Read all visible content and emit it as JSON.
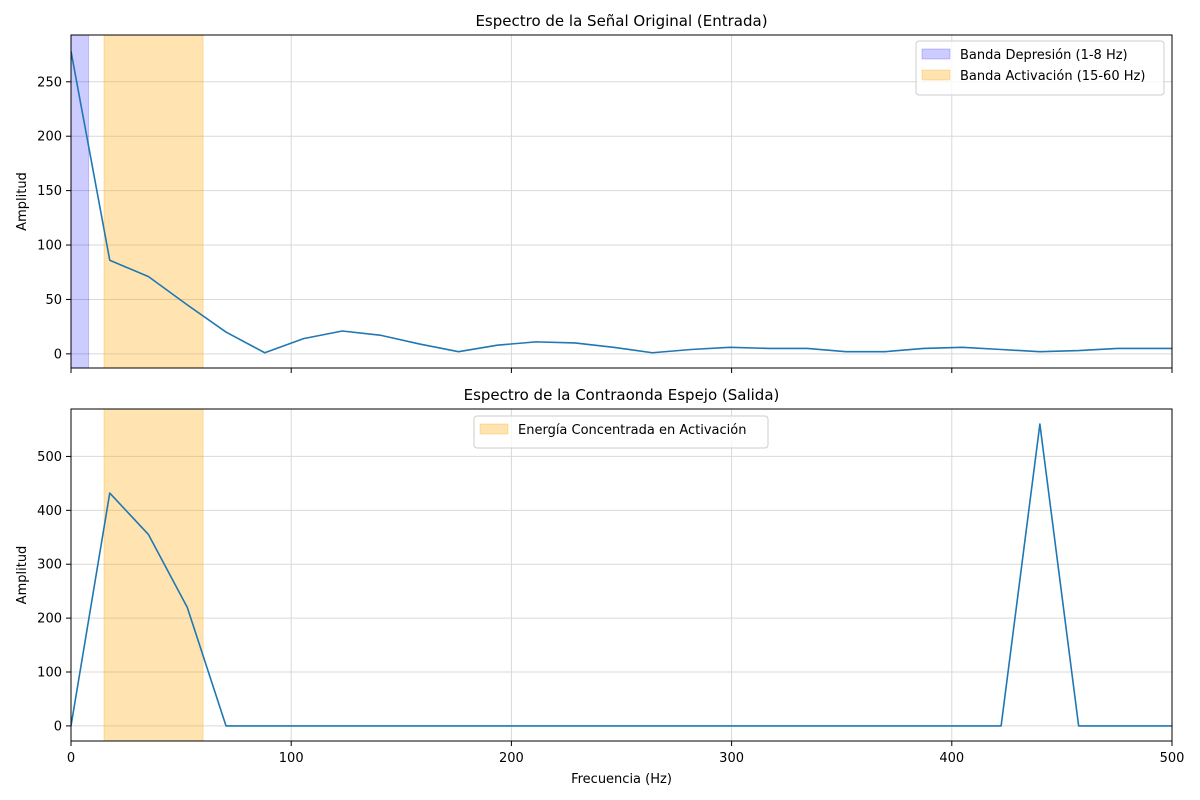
{
  "chart_data": [
    {
      "type": "line",
      "title": "Espectro de la Señal Original (Entrada)",
      "xlabel": "",
      "ylabel": "Amplitud",
      "xlim": [
        0,
        500
      ],
      "ylim": [
        -13,
        293
      ],
      "xticks": [
        0,
        100,
        200,
        300,
        400,
        500
      ],
      "yticks": [
        0,
        50,
        100,
        150,
        200,
        250
      ],
      "show_xtick_labels": false,
      "grid": true,
      "legend_position": "top-right",
      "bands": [
        {
          "label": "Banda Depresión (1-8 Hz)",
          "x0": 0,
          "x1": 8,
          "color": "#0000ff",
          "opacity": 0.2
        },
        {
          "label": "Banda Activación (15-60 Hz)",
          "x0": 15,
          "x1": 60,
          "color": "#ffa500",
          "opacity": 0.3
        }
      ],
      "series": [
        {
          "color": "#1f77b4",
          "x": [
            0,
            17.6,
            35.2,
            52.8,
            70.4,
            88.0,
            105.6,
            123.2,
            140.8,
            158.4,
            176.0,
            193.6,
            211.2,
            228.8,
            246.4,
            264.0,
            281.6,
            299.2,
            316.8,
            334.4,
            352.0,
            369.6,
            387.2,
            404.8,
            422.4,
            440.0,
            457.6,
            475.2,
            492.8,
            510.4
          ],
          "y": [
            278,
            86,
            71,
            45,
            20,
            1,
            14,
            21,
            17,
            9,
            2,
            8,
            11,
            10,
            6,
            1,
            4,
            6,
            5,
            5,
            2,
            2,
            5,
            6,
            4,
            2,
            3,
            5,
            5,
            5
          ]
        }
      ]
    },
    {
      "type": "line",
      "title": "Espectro de la Contraonda Espejo (Salida)",
      "xlabel": "Frecuencia (Hz)",
      "ylabel": "Amplitud",
      "xlim": [
        0,
        500
      ],
      "ylim": [
        -28,
        588
      ],
      "xticks": [
        0,
        100,
        200,
        300,
        400,
        500
      ],
      "yticks": [
        0,
        100,
        200,
        300,
        400,
        500
      ],
      "show_xtick_labels": true,
      "grid": true,
      "legend_position": "upper-center",
      "bands": [
        {
          "label": "Energía Concentrada en Activación",
          "x0": 15,
          "x1": 60,
          "color": "#ffa500",
          "opacity": 0.3
        }
      ],
      "series": [
        {
          "color": "#1f77b4",
          "x": [
            0,
            17.6,
            35.2,
            52.8,
            70.4,
            88.0,
            422.4,
            440.0,
            457.6,
            510.4
          ],
          "y": [
            0,
            432,
            355,
            220,
            0,
            0,
            0,
            560,
            0,
            0
          ]
        }
      ]
    }
  ]
}
